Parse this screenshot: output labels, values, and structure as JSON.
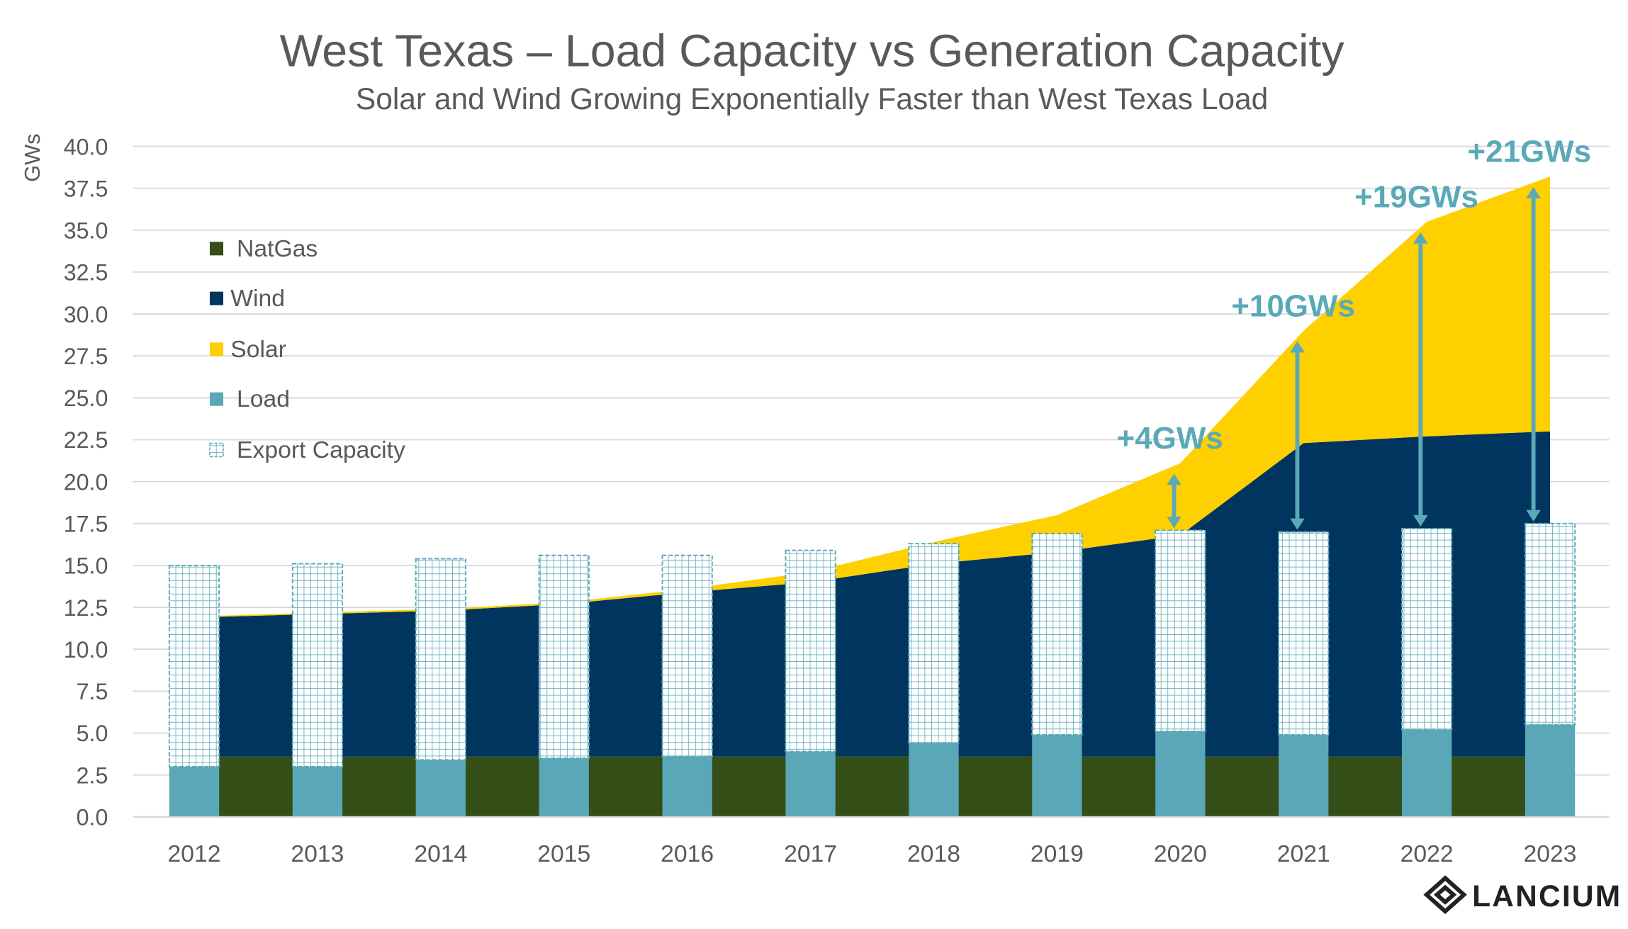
{
  "chart_data": {
    "type": "area+bar",
    "title": "West Texas – Load Capacity vs Generation Capacity",
    "subtitle": "Solar and Wind Growing Exponentially Faster than West Texas Load",
    "ylabel": "GWs",
    "xlabel": "",
    "ylim": [
      0,
      40
    ],
    "yticks": [
      "0.0",
      "2.5",
      "5.0",
      "7.5",
      "10.0",
      "12.5",
      "15.0",
      "17.5",
      "20.0",
      "22.5",
      "25.0",
      "27.5",
      "30.0",
      "32.5",
      "35.0",
      "37.5",
      "40.0"
    ],
    "grid": true,
    "legend_position": "left",
    "categories": [
      "2012",
      "2013",
      "2014",
      "2015",
      "2016",
      "2017",
      "2018",
      "2019",
      "2020",
      "2021",
      "2022",
      "2023"
    ],
    "stacked_area_series": [
      {
        "name": "NatGas",
        "color": "#344e17",
        "values": [
          3.6,
          3.6,
          3.6,
          3.6,
          3.6,
          3.6,
          3.6,
          3.6,
          3.6,
          3.6,
          3.6,
          3.6
        ]
      },
      {
        "name": "Wind",
        "color": "#00355f",
        "values": [
          8.3,
          8.5,
          8.7,
          9.1,
          9.8,
          10.4,
          11.5,
          12.2,
          13.2,
          18.7,
          19.1,
          19.4
        ]
      },
      {
        "name": "Solar",
        "color": "#ffd000",
        "values": [
          0.05,
          0.1,
          0.1,
          0.1,
          0.2,
          0.6,
          1.3,
          2.2,
          4.3,
          6.7,
          12.8,
          15.2
        ]
      }
    ],
    "stacked_bar_series": [
      {
        "name": "Load",
        "color": "#5aa8b7",
        "values": [
          3.0,
          3.0,
          3.4,
          3.5,
          3.6,
          3.9,
          4.4,
          4.9,
          5.1,
          4.9,
          5.2,
          5.5
        ]
      },
      {
        "name": "Export Capacity",
        "color": "#5aa8b7",
        "pattern": "grid",
        "values": [
          12.0,
          12.1,
          12.0,
          12.1,
          12.0,
          12.0,
          11.9,
          12.0,
          12.0,
          12.1,
          12.0,
          12.0
        ]
      }
    ],
    "annotations": [
      {
        "category": "2020",
        "label": "+4GWs"
      },
      {
        "category": "2021",
        "label": "+10GWs"
      },
      {
        "category": "2022",
        "label": "+19GWs"
      },
      {
        "category": "2023",
        "label": "+21GWs"
      }
    ],
    "annotation_color": "#5aa9b9"
  },
  "logo": {
    "text": "LANCIUM"
  }
}
